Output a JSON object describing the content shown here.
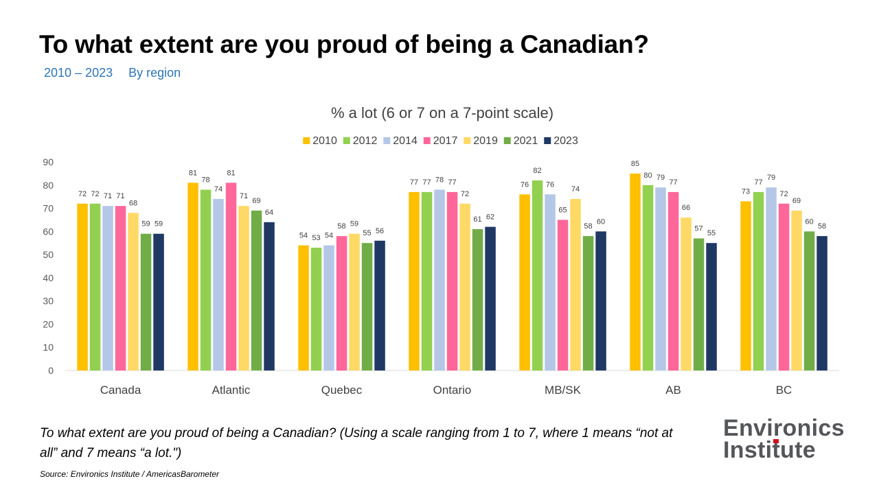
{
  "header": {
    "title": "To what extent are you proud of being a Canadian?",
    "years": "2010 – 2023",
    "scope": "By region"
  },
  "colors": {
    "subtitle": "#2e75b6",
    "logo_gray": "#55565a",
    "logo_accent": "#d0111b"
  },
  "chart_data": {
    "type": "bar",
    "title": "% a lot (6 or 7 on a 7-point scale)",
    "categories": [
      "Canada",
      "Atlantic",
      "Quebec",
      "Ontario",
      "MB/SK",
      "AB",
      "BC"
    ],
    "series": [
      {
        "name": "2010",
        "color": "#ffc000",
        "values": [
          72,
          81,
          54,
          77,
          76,
          85,
          73
        ]
      },
      {
        "name": "2012",
        "color": "#92d050",
        "values": [
          72,
          78,
          53,
          77,
          82,
          80,
          77
        ]
      },
      {
        "name": "2014",
        "color": "#b4c7e7",
        "values": [
          71,
          74,
          54,
          78,
          76,
          79,
          79
        ]
      },
      {
        "name": "2017",
        "color": "#ff6699",
        "values": [
          71,
          81,
          58,
          77,
          65,
          77,
          72
        ]
      },
      {
        "name": "2019",
        "color": "#ffd966",
        "values": [
          68,
          71,
          59,
          72,
          74,
          66,
          69
        ]
      },
      {
        "name": "2021",
        "color": "#70ad47",
        "values": [
          59,
          69,
          55,
          61,
          58,
          57,
          60
        ]
      },
      {
        "name": "2023",
        "color": "#203864",
        "values": [
          59,
          64,
          56,
          62,
          60,
          55,
          58
        ]
      }
    ],
    "ylim": [
      0,
      90
    ],
    "yticks": [
      0,
      10,
      20,
      30,
      40,
      50,
      60,
      70,
      80,
      90
    ],
    "grid": false,
    "legend_position": "top",
    "data_labels": true
  },
  "question": "To what extent are you proud of being a Canadian? (Using a scale ranging from 1 to 7, where 1 means “not at all” and 7 means “a lot.\")",
  "source": "Source: Environics Institute / AmericasBarometer",
  "logo": {
    "line1": "Environics",
    "line2_pre": "Insti",
    "line2_t": "t",
    "line2_post": "ute"
  }
}
